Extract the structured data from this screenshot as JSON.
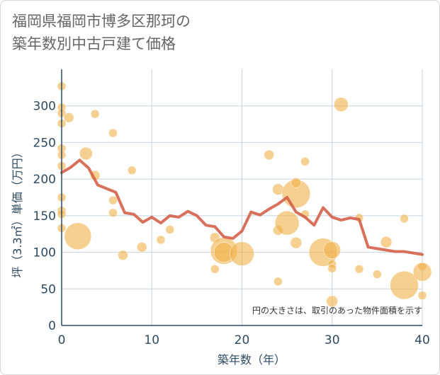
{
  "title_lines": [
    "福岡県福岡市博多区那珂の",
    "築年数別中古戸建て価格"
  ],
  "colors": {
    "bubble": "#f0b048",
    "line": "#d4604a",
    "grid": "#c5d3df",
    "axis": "#2e4a62"
  },
  "chart_data": {
    "type": "scatter",
    "title": "福岡県福岡市博多区那珂の築年数別中古戸建て価格",
    "xlabel": "築年数（年）",
    "ylabel": "坪（3.3㎡）単価（万円）",
    "xlim": [
      0,
      40
    ],
    "ylim": [
      0,
      350
    ],
    "xticks": [
      0,
      10,
      20,
      30,
      40
    ],
    "yticks": [
      0,
      50,
      100,
      150,
      200,
      250,
      300
    ],
    "grid": true,
    "note": "円の大きさは、取引のあった物件面積を示す",
    "bubbles": [
      {
        "x": 0,
        "y": 327,
        "s": 6
      },
      {
        "x": 0,
        "y": 298,
        "s": 6
      },
      {
        "x": 0,
        "y": 290,
        "s": 6
      },
      {
        "x": 0,
        "y": 276,
        "s": 6
      },
      {
        "x": 0,
        "y": 242,
        "s": 6
      },
      {
        "x": 0,
        "y": 233,
        "s": 6
      },
      {
        "x": 0,
        "y": 218,
        "s": 6
      },
      {
        "x": 0,
        "y": 175,
        "s": 6
      },
      {
        "x": 0,
        "y": 157,
        "s": 6
      },
      {
        "x": 0,
        "y": 152,
        "s": 6
      },
      {
        "x": 0,
        "y": 133,
        "s": 6
      },
      {
        "x": 0.8,
        "y": 284,
        "s": 7
      },
      {
        "x": 1.8,
        "y": 122,
        "s": 19
      },
      {
        "x": 3.7,
        "y": 289,
        "s": 6
      },
      {
        "x": 2.7,
        "y": 235,
        "s": 9
      },
      {
        "x": 3.7,
        "y": 205,
        "s": 7
      },
      {
        "x": 5.7,
        "y": 263,
        "s": 6
      },
      {
        "x": 5.7,
        "y": 171,
        "s": 6
      },
      {
        "x": 5.7,
        "y": 154,
        "s": 6
      },
      {
        "x": 6.8,
        "y": 96,
        "s": 7
      },
      {
        "x": 7.8,
        "y": 212,
        "s": 6
      },
      {
        "x": 8.9,
        "y": 107,
        "s": 7
      },
      {
        "x": 11,
        "y": 117,
        "s": 6
      },
      {
        "x": 12,
        "y": 131,
        "s": 6
      },
      {
        "x": 17,
        "y": 120,
        "s": 7
      },
      {
        "x": 17,
        "y": 77,
        "s": 6
      },
      {
        "x": 18,
        "y": 102,
        "s": 19
      },
      {
        "x": 18,
        "y": 100,
        "s": 14
      },
      {
        "x": 20,
        "y": 98,
        "s": 17
      },
      {
        "x": 23,
        "y": 233,
        "s": 7
      },
      {
        "x": 24,
        "y": 186,
        "s": 8
      },
      {
        "x": 24,
        "y": 130,
        "s": 7
      },
      {
        "x": 24,
        "y": 60,
        "s": 6
      },
      {
        "x": 25,
        "y": 140,
        "s": 17
      },
      {
        "x": 26,
        "y": 180,
        "s": 20
      },
      {
        "x": 26,
        "y": 195,
        "s": 7
      },
      {
        "x": 26,
        "y": 113,
        "s": 8
      },
      {
        "x": 27,
        "y": 224,
        "s": 6
      },
      {
        "x": 27,
        "y": 152,
        "s": 6
      },
      {
        "x": 29,
        "y": 100,
        "s": 20
      },
      {
        "x": 30,
        "y": 103,
        "s": 12
      },
      {
        "x": 30,
        "y": 84,
        "s": 6
      },
      {
        "x": 30,
        "y": 78,
        "s": 6
      },
      {
        "x": 30,
        "y": 33,
        "s": 8
      },
      {
        "x": 31,
        "y": 302,
        "s": 10
      },
      {
        "x": 33,
        "y": 147,
        "s": 6
      },
      {
        "x": 33,
        "y": 77,
        "s": 6
      },
      {
        "x": 35,
        "y": 70,
        "s": 6
      },
      {
        "x": 36,
        "y": 114,
        "s": 8
      },
      {
        "x": 38,
        "y": 146,
        "s": 6
      },
      {
        "x": 38,
        "y": 55,
        "s": 20
      },
      {
        "x": 40,
        "y": 81,
        "s": 6
      },
      {
        "x": 40,
        "y": 73,
        "s": 13
      },
      {
        "x": 40,
        "y": 41,
        "s": 6
      }
    ],
    "trend_line": {
      "x": [
        0,
        1,
        2,
        3,
        4,
        5,
        6,
        7,
        8,
        9,
        10,
        11,
        12,
        13,
        14,
        15,
        16,
        17,
        18,
        19,
        20,
        21,
        22,
        23,
        24,
        25,
        26,
        27,
        28,
        29,
        30,
        31,
        32,
        33,
        34,
        35,
        36,
        37,
        38,
        39,
        40
      ],
      "y": [
        209,
        216,
        226,
        215,
        192,
        187,
        182,
        154,
        152,
        141,
        148,
        140,
        150,
        148,
        156,
        150,
        137,
        135,
        121,
        119,
        129,
        155,
        151,
        159,
        166,
        175,
        155,
        148,
        137,
        161,
        148,
        144,
        147,
        145,
        107,
        105,
        103,
        101,
        101,
        99,
        97
      ]
    }
  }
}
